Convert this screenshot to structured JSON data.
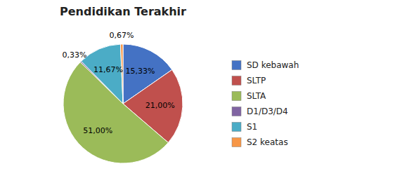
{
  "chart_data": {
    "type": "pie",
    "title": "Pendidikan Terakhir",
    "categories": [
      "SD kebawah",
      "SLTP",
      "SLTA",
      "D1/D3/D4",
      "S1",
      "S2 keatas"
    ],
    "values": [
      15.33,
      21.0,
      51.0,
      0.33,
      11.67,
      0.67
    ],
    "value_labels": [
      "15,33%",
      "21,00%",
      "51,00%",
      "0,33%",
      "11,67%",
      "0,67%"
    ],
    "colors": [
      "#4472C4",
      "#C0504D",
      "#9BBB59",
      "#8064A2",
      "#4BACC6",
      "#F79646"
    ],
    "data_labels": true,
    "legend": "right"
  }
}
